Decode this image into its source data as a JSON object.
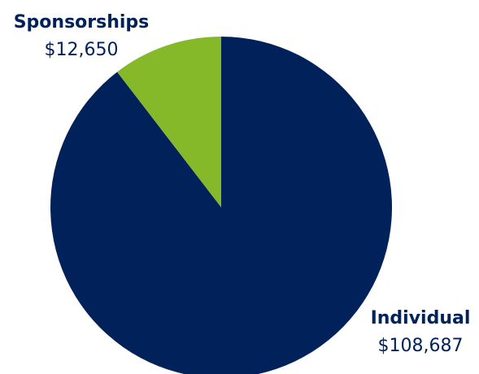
{
  "chart_data": {
    "type": "pie",
    "slices": [
      {
        "name": "Individual",
        "value_label": "$108,687",
        "value": 108687,
        "color": "#002159"
      },
      {
        "name": "Sponsorships",
        "value_label": "$12,650",
        "value": 12650,
        "color": "#86B92A"
      }
    ],
    "start_angle_deg": 0,
    "direction": "clockwise",
    "label_color": "#002159"
  }
}
